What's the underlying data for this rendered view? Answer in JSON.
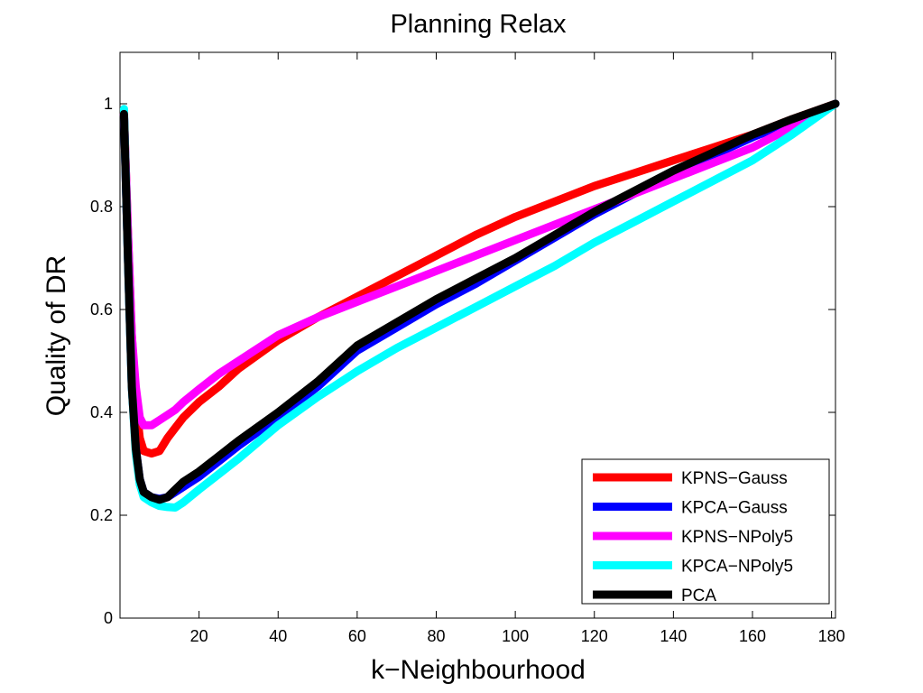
{
  "chart_data": {
    "type": "line",
    "title": "Planning Relax",
    "xlabel": "k−Neighbourhood",
    "ylabel": "Quality of DR",
    "xlim": [
      0,
      181
    ],
    "ylim": [
      0,
      1.1
    ],
    "xticks": [
      20,
      40,
      60,
      80,
      100,
      120,
      140,
      160,
      180
    ],
    "yticks": [
      0,
      0.2,
      0.4,
      0.6,
      0.8,
      1
    ],
    "ytick_labels": [
      "0",
      "0.2",
      "0.4",
      "0.6",
      "0.8",
      "1"
    ],
    "grid": false,
    "legend_position": "bottom-right",
    "series": [
      {
        "name": "KPNS−Gauss",
        "color": "#ff0000",
        "x": [
          1,
          2,
          3,
          4,
          5,
          6,
          8,
          10,
          12,
          14,
          16,
          20,
          25,
          30,
          40,
          50,
          60,
          70,
          80,
          90,
          100,
          110,
          120,
          130,
          140,
          150,
          160,
          170,
          181
        ],
        "y": [
          0.98,
          0.75,
          0.55,
          0.42,
          0.35,
          0.325,
          0.32,
          0.325,
          0.35,
          0.37,
          0.39,
          0.42,
          0.45,
          0.485,
          0.54,
          0.585,
          0.625,
          0.665,
          0.705,
          0.745,
          0.78,
          0.81,
          0.84,
          0.865,
          0.89,
          0.915,
          0.94,
          0.97,
          1.0
        ]
      },
      {
        "name": "KPCA−Gauss",
        "color": "#0000ff",
        "x": [
          1,
          2,
          3,
          4,
          5,
          6,
          8,
          10,
          12,
          14,
          16,
          20,
          25,
          30,
          40,
          50,
          60,
          70,
          80,
          90,
          100,
          110,
          120,
          130,
          140,
          150,
          160,
          170,
          181
        ],
        "y": [
          0.98,
          0.7,
          0.45,
          0.33,
          0.27,
          0.245,
          0.235,
          0.232,
          0.235,
          0.245,
          0.255,
          0.275,
          0.305,
          0.335,
          0.39,
          0.45,
          0.52,
          0.565,
          0.61,
          0.65,
          0.695,
          0.74,
          0.785,
          0.825,
          0.865,
          0.9,
          0.935,
          0.965,
          1.0
        ]
      },
      {
        "name": "KPNS−NPoly5",
        "color": "#ff00ff",
        "x": [
          1,
          2,
          3,
          4,
          5,
          6,
          8,
          10,
          12,
          14,
          16,
          20,
          25,
          30,
          40,
          50,
          60,
          70,
          80,
          90,
          100,
          110,
          120,
          130,
          140,
          150,
          160,
          170,
          181
        ],
        "y": [
          0.98,
          0.75,
          0.55,
          0.45,
          0.39,
          0.375,
          0.375,
          0.385,
          0.395,
          0.405,
          0.42,
          0.445,
          0.475,
          0.5,
          0.55,
          0.585,
          0.615,
          0.645,
          0.675,
          0.705,
          0.735,
          0.765,
          0.795,
          0.825,
          0.855,
          0.885,
          0.915,
          0.955,
          1.0
        ]
      },
      {
        "name": "KPCA−NPoly5",
        "color": "#00ffff",
        "x": [
          1,
          2,
          3,
          4,
          5,
          6,
          8,
          10,
          12,
          14,
          16,
          20,
          25,
          30,
          40,
          50,
          60,
          70,
          80,
          90,
          100,
          110,
          120,
          130,
          140,
          150,
          160,
          170,
          181
        ],
        "y": [
          0.99,
          0.7,
          0.45,
          0.32,
          0.26,
          0.235,
          0.225,
          0.218,
          0.216,
          0.215,
          0.225,
          0.25,
          0.28,
          0.31,
          0.375,
          0.43,
          0.48,
          0.525,
          0.565,
          0.605,
          0.645,
          0.685,
          0.73,
          0.77,
          0.81,
          0.85,
          0.89,
          0.94,
          1.0
        ]
      },
      {
        "name": "PCA",
        "color": "#000000",
        "x": [
          1,
          2,
          3,
          4,
          5,
          6,
          8,
          10,
          12,
          14,
          16,
          20,
          25,
          30,
          40,
          50,
          60,
          70,
          80,
          90,
          100,
          110,
          120,
          130,
          140,
          150,
          160,
          170,
          181
        ],
        "y": [
          0.98,
          0.7,
          0.45,
          0.33,
          0.27,
          0.245,
          0.235,
          0.23,
          0.235,
          0.25,
          0.265,
          0.285,
          0.315,
          0.345,
          0.4,
          0.46,
          0.53,
          0.575,
          0.62,
          0.66,
          0.7,
          0.745,
          0.79,
          0.83,
          0.87,
          0.905,
          0.94,
          0.97,
          1.0
        ]
      }
    ]
  }
}
